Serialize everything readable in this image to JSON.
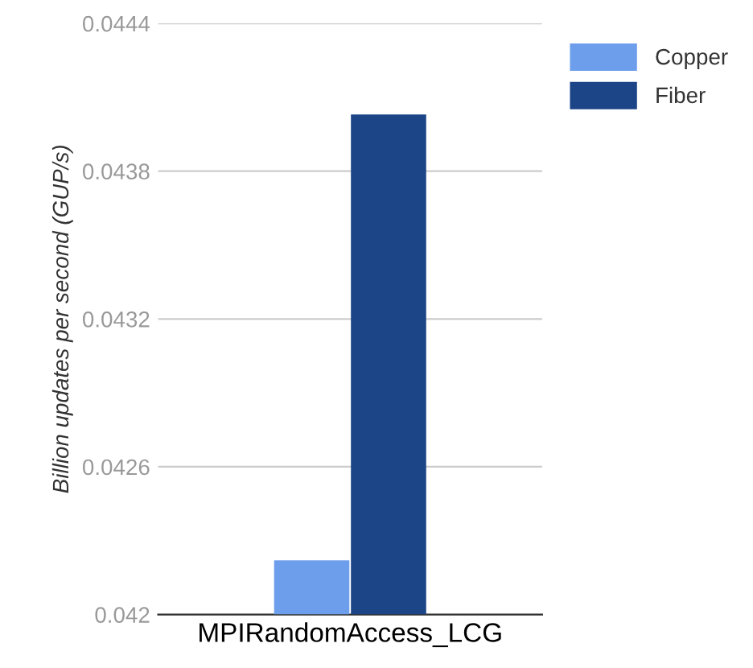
{
  "chart_data": {
    "type": "bar",
    "ylabel": "Billion updates per second (GUP/s)",
    "categories": [
      "MPIRandomAccess_LCG"
    ],
    "series": [
      {
        "name": "Copper",
        "color": "#6d9eeb",
        "values": [
          0.04222
        ]
      },
      {
        "name": "Fiber",
        "color": "#1c4587",
        "values": [
          0.04403
        ]
      }
    ],
    "ylim": [
      0.042,
      0.0444
    ],
    "yticks": [
      0.042,
      0.0426,
      0.0432,
      0.0438,
      0.0444
    ],
    "grid": "y",
    "legend": "top right"
  }
}
